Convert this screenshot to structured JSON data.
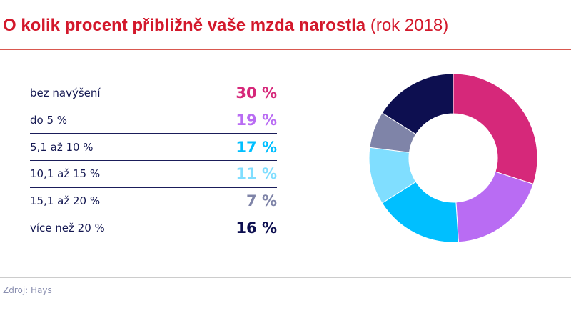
{
  "title": {
    "bold": "O kolik procent přibližně vaše mzda narostla",
    "normal": "(rok 2018)"
  },
  "chart_data": {
    "type": "pie",
    "donut": true,
    "categories": [
      "bez navýšení",
      "do  5 %",
      "5,1 až 10 %",
      "10,1 až 15 %",
      "15,1 až 20 %",
      "více než 20 %"
    ],
    "values": [
      30,
      19,
      17,
      11,
      7,
      16
    ],
    "labels": [
      "30 %",
      "19 %",
      "17 %",
      "11 %",
      "7 %",
      "16 %"
    ],
    "colors": [
      "#d6287a",
      "#b96cf3",
      "#00bfff",
      "#80deff",
      "#7f84a8",
      "#0d0f50"
    ]
  },
  "source": "Zdroj: Hays"
}
